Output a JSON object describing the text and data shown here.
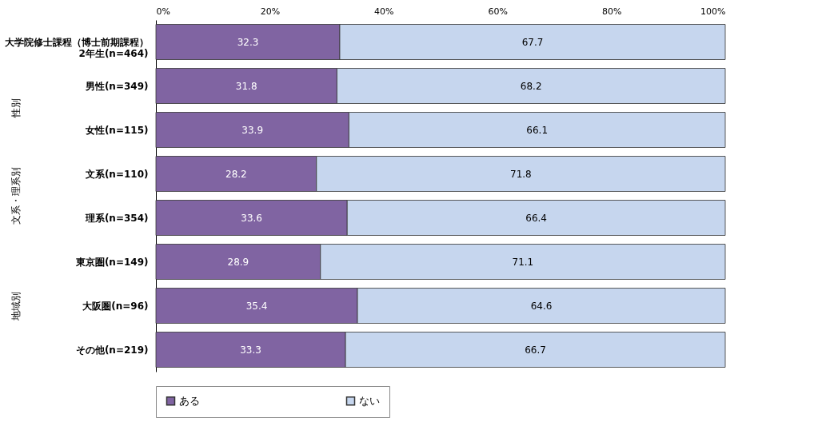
{
  "chart_data": {
    "type": "bar",
    "orientation": "horizontal",
    "stacked": true,
    "categories": [
      "大学院修士課程（博士前期課程）\n2年生(n=464)",
      "男性(n=349)",
      "女性(n=115)",
      "文系(n=110)",
      "理系(n=354)",
      "東京圏(n=149)",
      "大阪圏(n=96)",
      "その他(n=219)"
    ],
    "series": [
      {
        "name": "ある",
        "color": "#8064a2",
        "values": [
          32.3,
          31.8,
          33.9,
          28.2,
          33.6,
          28.9,
          35.4,
          33.3
        ]
      },
      {
        "name": "ない",
        "color": "#c6d6ee",
        "values": [
          67.7,
          68.2,
          66.1,
          71.8,
          66.4,
          71.1,
          64.6,
          66.7
        ]
      }
    ],
    "xlim": [
      0,
      100
    ],
    "xticks": [
      {
        "value": 0,
        "label": "0%"
      },
      {
        "value": 20,
        "label": "20%"
      },
      {
        "value": 40,
        "label": "40%"
      },
      {
        "value": 60,
        "label": "60%"
      },
      {
        "value": 80,
        "label": "80%"
      },
      {
        "value": 100,
        "label": "100%"
      }
    ],
    "data_labels": true,
    "legend": "bottom",
    "annotations": [
      "性別",
      "文系・理系別",
      "地域別"
    ]
  }
}
